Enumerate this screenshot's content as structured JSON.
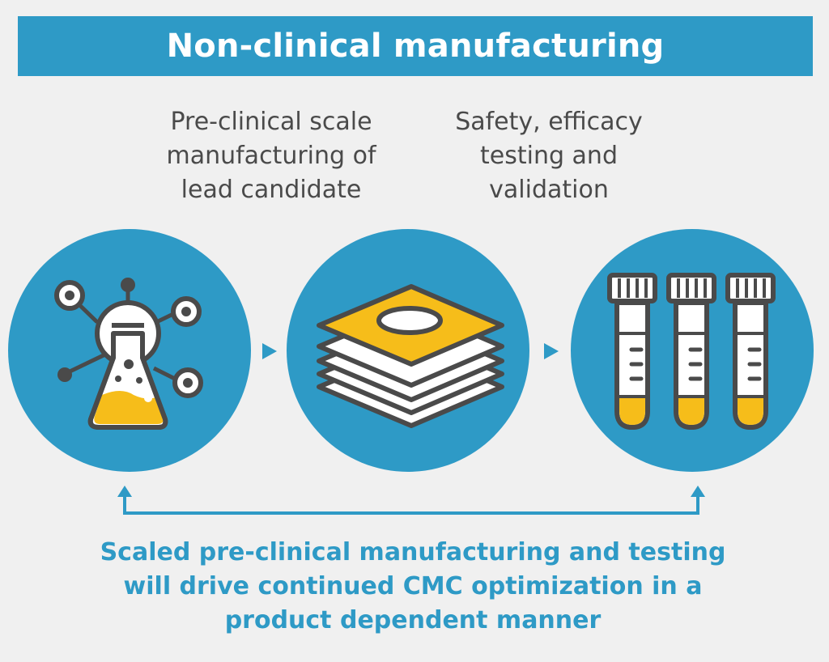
{
  "header": {
    "title": "Non-clinical manufacturing"
  },
  "steps": [
    {
      "caption": "Pre-clinical scale\nmanufacturing of\nlead candidate",
      "icon": "flask-molecule-icon"
    },
    {
      "caption": "",
      "icon": "stacked-plates-icon"
    },
    {
      "caption": "Safety, efficacy\ntesting and\nvalidation",
      "icon": "test-tubes-icon"
    }
  ],
  "footer": {
    "text": "Scaled pre-clinical manufacturing and testing\nwill drive continued CMC optimization in a\nproduct dependent manner"
  },
  "colors": {
    "blue": "#2e9ac6",
    "yellow": "#f6bd1a",
    "dark": "#4a4a4a",
    "background": "#f0f0f0"
  }
}
